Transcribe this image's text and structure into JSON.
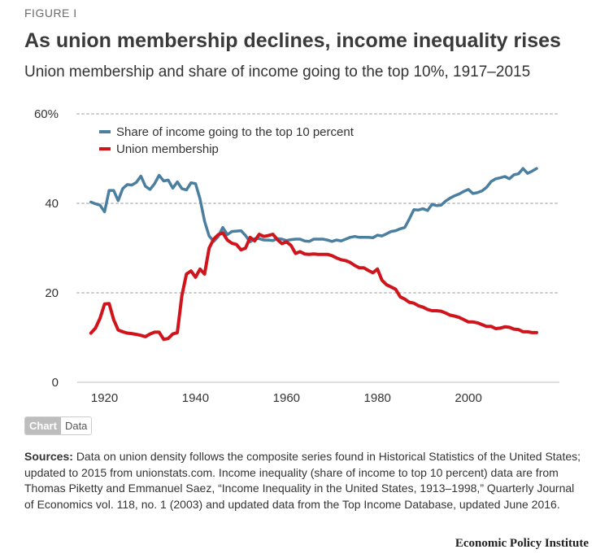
{
  "figure_label": "FIGURE I",
  "title": "As union membership declines, income inequality rises",
  "subtitle": "Union membership and share of income going to the top 10%, 1917–2015",
  "toggle": {
    "chart_label": "Chart",
    "data_label": "Data"
  },
  "sources": {
    "label": "Sources:",
    "text": "Data on union density follows the composite series found in Historical Statistics of the United States; updated to 2015 from unionstats.com. Income inequality (share of income to top 10 percent) data are from Thomas Piketty and Emmanuel Saez, “Income Inequality in the United States, 1913–1998,” Quarterly Journal of Economics vol. 118, no. 1 (2003) and updated data from the Top Income Database, updated June 2016."
  },
  "brand": "Economic Policy Institute",
  "colors": {
    "income": "#4a7fa0",
    "union": "#d0141b",
    "grid": "#cccccc",
    "text": "#333333"
  },
  "chart_data": {
    "type": "line",
    "title": "Union membership and share of income going to the top 10%, 1917–2015",
    "xlabel": "",
    "ylabel": "",
    "xlim": [
      1914,
      2020
    ],
    "ylim": [
      0,
      60
    ],
    "x_ticks": [
      1920,
      1940,
      1960,
      1980,
      2000
    ],
    "y_ticks": [
      0,
      20,
      40,
      60
    ],
    "y_tick_labels": [
      "0",
      "20",
      "40",
      "60%"
    ],
    "legend_position": "top-left",
    "series": [
      {
        "name": "Share of income going to the top 10 percent",
        "color": "#4a7fa0",
        "x": [
          1917,
          1918,
          1919,
          1920,
          1921,
          1922,
          1923,
          1924,
          1925,
          1926,
          1927,
          1928,
          1929,
          1930,
          1931,
          1932,
          1933,
          1934,
          1935,
          1936,
          1937,
          1938,
          1939,
          1940,
          1941,
          1942,
          1943,
          1944,
          1945,
          1946,
          1947,
          1948,
          1949,
          1950,
          1951,
          1952,
          1953,
          1954,
          1955,
          1956,
          1957,
          1958,
          1959,
          1960,
          1961,
          1962,
          1963,
          1964,
          1965,
          1966,
          1967,
          1968,
          1969,
          1970,
          1971,
          1972,
          1973,
          1974,
          1975,
          1976,
          1977,
          1978,
          1979,
          1980,
          1981,
          1982,
          1983,
          1984,
          1985,
          1986,
          1987,
          1988,
          1989,
          1990,
          1991,
          1992,
          1993,
          1994,
          1995,
          1996,
          1997,
          1998,
          1999,
          2000,
          2001,
          2002,
          2003,
          2004,
          2005,
          2006,
          2007,
          2008,
          2009,
          2010,
          2011,
          2012,
          2013,
          2014,
          2015
        ],
        "values": [
          40.3,
          39.9,
          39.6,
          38.1,
          42.9,
          42.9,
          40.6,
          43.3,
          44.2,
          44.1,
          44.7,
          46.1,
          43.8,
          43.1,
          44.4,
          46.3,
          45.0,
          45.2,
          43.4,
          44.8,
          43.3,
          43.0,
          44.6,
          44.4,
          41.0,
          36.0,
          32.7,
          31.5,
          32.6,
          34.6,
          33.0,
          33.7,
          33.8,
          33.9,
          32.8,
          31.4,
          32.1,
          32.1,
          31.8,
          31.8,
          31.7,
          32.1,
          32.0,
          31.7,
          31.9,
          32.0,
          32.0,
          31.6,
          31.5,
          32.0,
          32.0,
          32.0,
          31.8,
          31.5,
          31.8,
          31.6,
          32.0,
          32.4,
          32.6,
          32.4,
          32.4,
          32.4,
          32.3,
          32.9,
          32.7,
          33.2,
          33.7,
          33.9,
          34.3,
          34.6,
          36.5,
          38.6,
          38.5,
          38.8,
          38.4,
          39.8,
          39.5,
          39.6,
          40.5,
          41.2,
          41.7,
          42.1,
          42.7,
          43.1,
          42.2,
          42.4,
          42.8,
          43.6,
          44.9,
          45.5,
          45.7,
          46.0,
          45.5,
          46.4,
          46.6,
          47.8,
          46.7,
          47.2,
          47.8
        ]
      },
      {
        "name": "Union membership",
        "color": "#d0141b",
        "x": [
          1917,
          1918,
          1919,
          1920,
          1921,
          1922,
          1923,
          1924,
          1925,
          1926,
          1927,
          1928,
          1929,
          1930,
          1931,
          1932,
          1933,
          1934,
          1935,
          1936,
          1937,
          1938,
          1939,
          1940,
          1941,
          1942,
          1943,
          1944,
          1945,
          1946,
          1947,
          1948,
          1949,
          1950,
          1951,
          1952,
          1953,
          1954,
          1955,
          1956,
          1957,
          1958,
          1959,
          1960,
          1961,
          1962,
          1963,
          1964,
          1965,
          1966,
          1967,
          1968,
          1969,
          1970,
          1971,
          1972,
          1973,
          1974,
          1975,
          1976,
          1977,
          1978,
          1979,
          1980,
          1981,
          1982,
          1983,
          1984,
          1985,
          1986,
          1987,
          1988,
          1989,
          1990,
          1991,
          1992,
          1993,
          1994,
          1995,
          1996,
          1997,
          1998,
          1999,
          2000,
          2001,
          2002,
          2003,
          2004,
          2005,
          2006,
          2007,
          2008,
          2009,
          2010,
          2011,
          2012,
          2013,
          2014,
          2015
        ],
        "values": [
          11.0,
          12.1,
          14.3,
          17.5,
          17.6,
          14.0,
          11.7,
          11.3,
          11.0,
          10.9,
          10.7,
          10.5,
          10.2,
          10.8,
          11.2,
          11.2,
          9.6,
          9.8,
          10.8,
          11.1,
          19.4,
          24.2,
          24.9,
          23.5,
          25.3,
          24.2,
          30.0,
          32.0,
          33.0,
          33.4,
          31.8,
          31.1,
          30.8,
          29.6,
          30.0,
          32.4,
          31.6,
          33.1,
          32.6,
          32.8,
          33.1,
          31.9,
          31.0,
          31.4,
          30.6,
          28.8,
          29.2,
          28.7,
          28.6,
          28.7,
          28.6,
          28.6,
          28.6,
          28.3,
          27.8,
          27.4,
          27.2,
          26.8,
          26.1,
          25.6,
          25.6,
          25.0,
          24.5,
          25.3,
          22.8,
          21.8,
          21.3,
          20.8,
          19.1,
          18.6,
          17.9,
          17.7,
          17.1,
          16.8,
          16.3,
          16.0,
          16.0,
          15.9,
          15.5,
          15.0,
          14.8,
          14.5,
          14.0,
          13.5,
          13.5,
          13.3,
          12.9,
          12.5,
          12.5,
          12.0,
          12.1,
          12.4,
          12.3,
          11.9,
          11.8,
          11.3,
          11.3,
          11.1,
          11.1
        ]
      }
    ]
  }
}
